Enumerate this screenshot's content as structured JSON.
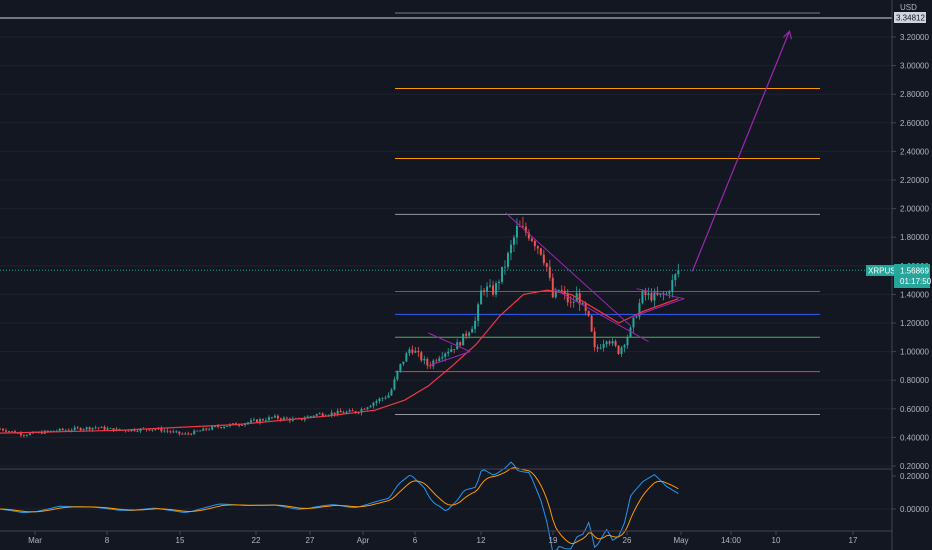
{
  "chart_data": {
    "type": "candlestick",
    "symbol": "XRPUSD",
    "currency": "USD",
    "last_price_label": "1.56869",
    "countdown": "01:17:50",
    "top_tag": "3.34812",
    "y_axis": {
      "ticks": [
        "3.20000",
        "3.00000",
        "2.80000",
        "2.60000",
        "2.40000",
        "2.20000",
        "2.00000",
        "1.80000",
        "1.60000",
        "1.40000",
        "1.20000",
        "1.00000",
        "0.80000",
        "0.60000",
        "0.40000",
        "0.20000"
      ],
      "ylim": [
        0.13,
        3.4
      ]
    },
    "x_axis": {
      "ticks": [
        "Mar",
        "8",
        "15",
        "22",
        "27",
        "Apr",
        "6",
        "12",
        "19",
        "26",
        "May",
        "14:00",
        "10",
        "17"
      ]
    },
    "oscillator_ticks": [
      "0.20000",
      "0.00000"
    ],
    "price_path": [
      [
        0.0,
        0.46
      ],
      [
        0.04,
        0.42
      ],
      [
        0.1,
        0.45
      ],
      [
        0.16,
        0.47
      ],
      [
        0.2,
        0.45
      ],
      [
        0.26,
        0.46
      ],
      [
        0.31,
        0.42
      ],
      [
        0.36,
        0.47
      ],
      [
        0.41,
        0.5
      ],
      [
        0.46,
        0.54
      ],
      [
        0.5,
        0.52
      ],
      [
        0.53,
        0.56
      ],
      [
        0.56,
        0.57
      ],
      [
        0.6,
        0.58
      ],
      [
        0.63,
        0.65
      ],
      [
        0.655,
        0.7
      ],
      [
        0.67,
        0.88
      ],
      [
        0.69,
        1.03
      ],
      [
        0.72,
        0.9
      ],
      [
        0.74,
        0.98
      ],
      [
        0.77,
        1.05
      ],
      [
        0.8,
        1.22
      ],
      [
        0.81,
        1.45
      ],
      [
        0.83,
        1.42
      ],
      [
        0.85,
        1.62
      ],
      [
        0.87,
        1.87
      ],
      [
        0.89,
        1.82
      ],
      [
        0.91,
        1.7
      ],
      [
        0.92,
        1.58
      ],
      [
        0.93,
        1.36
      ],
      [
        0.94,
        1.44
      ],
      [
        0.95,
        1.38
      ],
      [
        0.96,
        1.32
      ],
      [
        0.97,
        1.4
      ],
      [
        0.98,
        1.3
      ],
      [
        0.99,
        1.22
      ],
      [
        1.0,
        1.0
      ],
      [
        1.02,
        1.1
      ],
      [
        1.04,
        1.0
      ],
      [
        1.06,
        1.15
      ],
      [
        1.08,
        1.4
      ],
      [
        1.1,
        1.38
      ],
      [
        1.12,
        1.4
      ],
      [
        1.14,
        1.57
      ]
    ],
    "moving_average": [
      [
        0.0,
        0.43
      ],
      [
        0.2,
        0.45
      ],
      [
        0.4,
        0.49
      ],
      [
        0.55,
        0.55
      ],
      [
        0.63,
        0.59
      ],
      [
        0.68,
        0.66
      ],
      [
        0.72,
        0.76
      ],
      [
        0.76,
        0.9
      ],
      [
        0.8,
        1.05
      ],
      [
        0.84,
        1.25
      ],
      [
        0.88,
        1.4
      ],
      [
        0.92,
        1.43
      ],
      [
        0.96,
        1.4
      ],
      [
        1.0,
        1.3
      ],
      [
        1.04,
        1.2
      ],
      [
        1.08,
        1.28
      ],
      [
        1.12,
        1.34
      ],
      [
        1.14,
        1.37
      ]
    ],
    "horizontal_levels": [
      {
        "value": 3.36,
        "color": "#b2b5be"
      },
      {
        "value": 2.84,
        "color": "#ff9800"
      },
      {
        "value": 2.35,
        "color": "#ff9800"
      },
      {
        "value": 1.96,
        "color": "#9598a1"
      },
      {
        "value": 1.42,
        "color": "#2962ff"
      },
      {
        "value": 1.26,
        "color": "#2962ff"
      },
      {
        "value": 1.1,
        "color": "#4caf50"
      },
      {
        "value": 0.86,
        "color": "#f23645"
      },
      {
        "value": 0.56,
        "color": "#9598a1"
      }
    ],
    "projection": [
      [
        1.15,
        1.56
      ],
      [
        1.31,
        3.24
      ]
    ],
    "colors": {
      "up": "#26a69a",
      "down": "#ef5350",
      "ma": "#f23645",
      "macd": "#2196f3",
      "signal": "#ff9800",
      "trendline": "#9c27b0",
      "projection": "#9c27b0",
      "price_tag": "#26a69a"
    }
  }
}
